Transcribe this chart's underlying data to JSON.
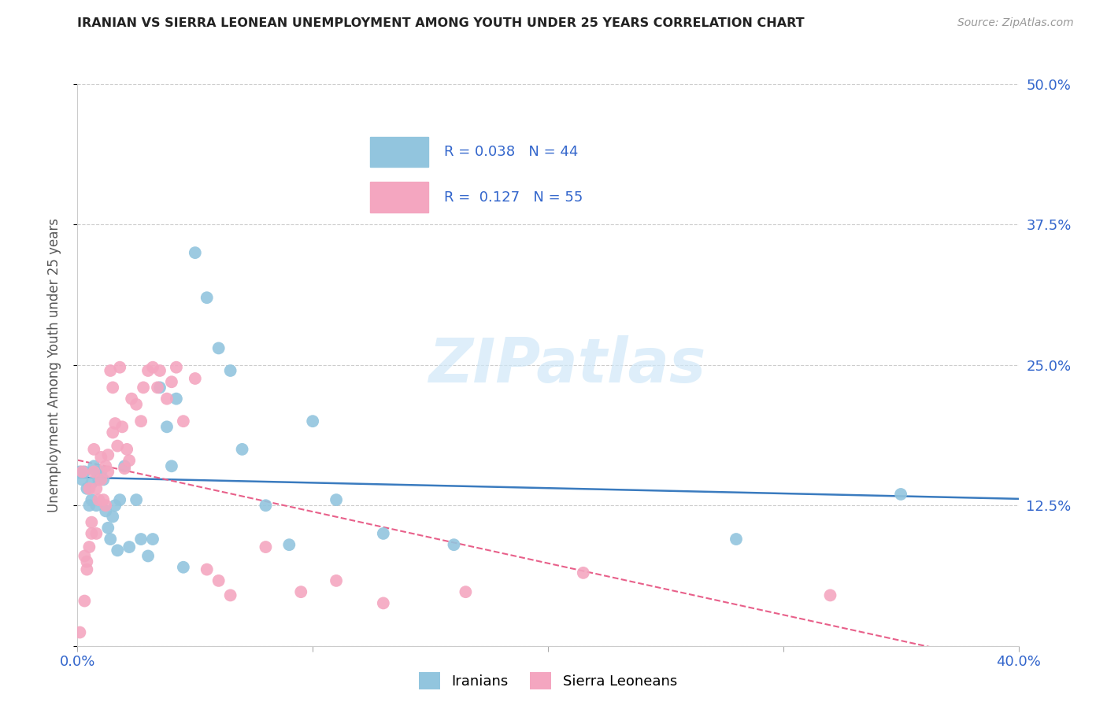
{
  "title": "IRANIAN VS SIERRA LEONEAN UNEMPLOYMENT AMONG YOUTH UNDER 25 YEARS CORRELATION CHART",
  "source": "Source: ZipAtlas.com",
  "ylabel": "Unemployment Among Youth under 25 years",
  "xlim": [
    0.0,
    0.4
  ],
  "ylim": [
    0.0,
    0.5
  ],
  "x_ticks": [
    0.0,
    0.1,
    0.2,
    0.3,
    0.4
  ],
  "x_tick_labels": [
    "0.0%",
    "",
    "",
    "",
    "40.0%"
  ],
  "y_ticks": [
    0.0,
    0.125,
    0.25,
    0.375,
    0.5
  ],
  "y_tick_labels_right": [
    "",
    "12.5%",
    "25.0%",
    "37.5%",
    "50.0%"
  ],
  "iranian_R": 0.038,
  "iranian_N": 44,
  "sierra_R": 0.127,
  "sierra_N": 55,
  "iranian_color": "#92c5de",
  "sierra_color": "#f4a6c0",
  "iranian_line_color": "#3a7bbf",
  "sierra_line_color": "#e8608a",
  "background_color": "#ffffff",
  "iranians_x": [
    0.001,
    0.002,
    0.003,
    0.004,
    0.005,
    0.006,
    0.006,
    0.007,
    0.008,
    0.008,
    0.009,
    0.01,
    0.011,
    0.012,
    0.013,
    0.014,
    0.015,
    0.016,
    0.017,
    0.018,
    0.02,
    0.022,
    0.025,
    0.027,
    0.03,
    0.032,
    0.035,
    0.038,
    0.04,
    0.042,
    0.045,
    0.05,
    0.055,
    0.06,
    0.065,
    0.07,
    0.08,
    0.09,
    0.1,
    0.11,
    0.13,
    0.16,
    0.28,
    0.35
  ],
  "iranians_y": [
    0.155,
    0.148,
    0.155,
    0.14,
    0.125,
    0.13,
    0.145,
    0.16,
    0.125,
    0.155,
    0.148,
    0.155,
    0.148,
    0.12,
    0.105,
    0.095,
    0.115,
    0.125,
    0.085,
    0.13,
    0.16,
    0.088,
    0.13,
    0.095,
    0.08,
    0.095,
    0.23,
    0.195,
    0.16,
    0.22,
    0.07,
    0.35,
    0.31,
    0.265,
    0.245,
    0.175,
    0.125,
    0.09,
    0.2,
    0.13,
    0.1,
    0.09,
    0.095,
    0.135
  ],
  "sierras_x": [
    0.001,
    0.002,
    0.003,
    0.003,
    0.004,
    0.004,
    0.005,
    0.005,
    0.006,
    0.006,
    0.007,
    0.007,
    0.008,
    0.008,
    0.009,
    0.01,
    0.01,
    0.011,
    0.012,
    0.012,
    0.013,
    0.013,
    0.014,
    0.015,
    0.015,
    0.016,
    0.017,
    0.018,
    0.019,
    0.02,
    0.021,
    0.022,
    0.023,
    0.025,
    0.027,
    0.028,
    0.03,
    0.032,
    0.034,
    0.035,
    0.038,
    0.04,
    0.042,
    0.045,
    0.05,
    0.055,
    0.06,
    0.065,
    0.08,
    0.095,
    0.11,
    0.13,
    0.165,
    0.215,
    0.32
  ],
  "sierras_y": [
    0.012,
    0.155,
    0.04,
    0.08,
    0.068,
    0.075,
    0.14,
    0.088,
    0.1,
    0.11,
    0.155,
    0.175,
    0.1,
    0.14,
    0.13,
    0.148,
    0.168,
    0.13,
    0.125,
    0.16,
    0.155,
    0.17,
    0.245,
    0.19,
    0.23,
    0.198,
    0.178,
    0.248,
    0.195,
    0.158,
    0.175,
    0.165,
    0.22,
    0.215,
    0.2,
    0.23,
    0.245,
    0.248,
    0.23,
    0.245,
    0.22,
    0.235,
    0.248,
    0.2,
    0.238,
    0.068,
    0.058,
    0.045,
    0.088,
    0.048,
    0.058,
    0.038,
    0.048,
    0.065,
    0.045
  ],
  "watermark": "ZIPatlas",
  "watermark_color": "#d0e8f8"
}
